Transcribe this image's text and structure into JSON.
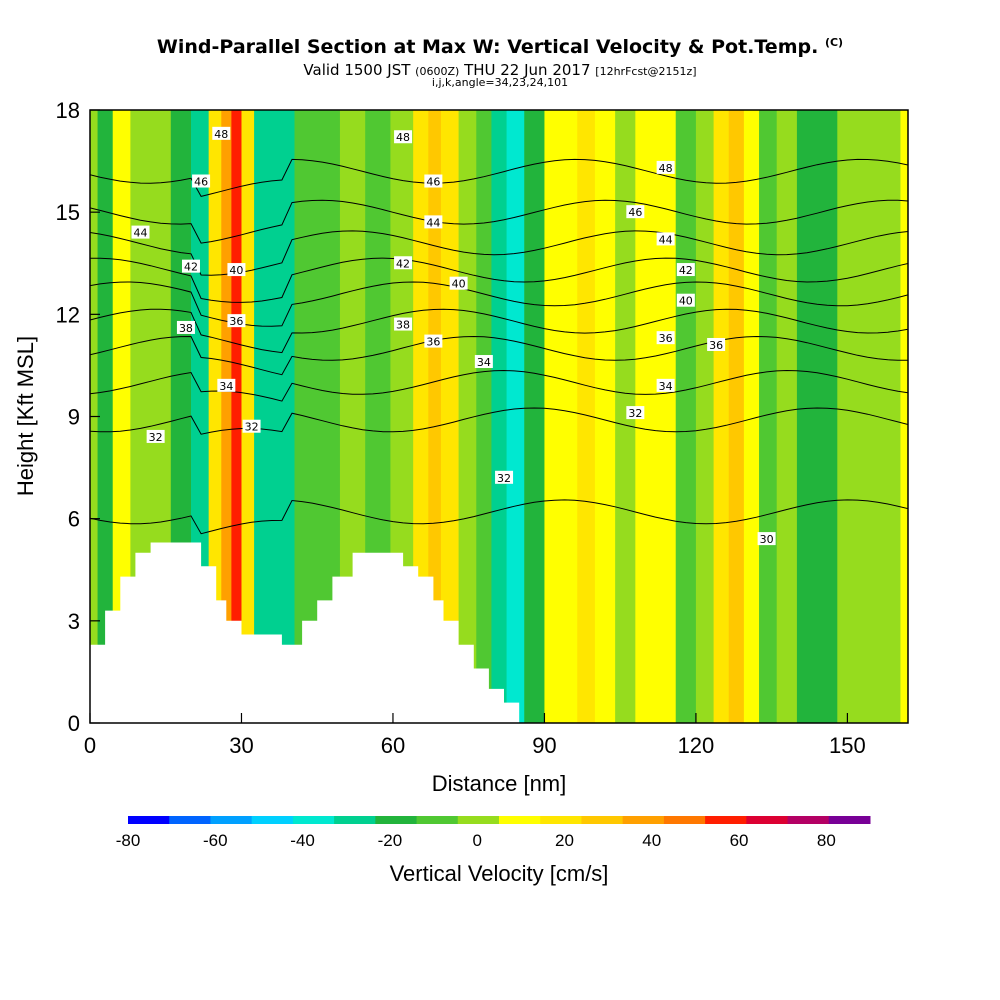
{
  "header": {
    "title": "Wind-Parallel Section at Max W: Vertical Velocity & Pot.Temp.",
    "copyright": "(C)",
    "subtitle_main": "Valid 1500 JST",
    "subtitle_utc": "(0600Z)",
    "subtitle_date": "THU 22 Jun 2017",
    "subtitle_fcst": "[12hrFcst@2151z]",
    "subtitle2": "i,j,k,angle=34,23,24,101"
  },
  "chart_data": {
    "type": "heatmap",
    "title": "Wind-Parallel Section at Max W: Vertical Velocity & Pot.Temp.",
    "xlabel": "Distance [nm]",
    "ylabel": "Height [Kft MSL]",
    "xlim": [
      0,
      162
    ],
    "ylim": [
      0,
      18
    ],
    "x_ticks": [
      0,
      30,
      60,
      90,
      120,
      150
    ],
    "y_ticks": [
      0,
      3,
      6,
      9,
      12,
      15,
      18
    ],
    "colorbar": {
      "label": "Vertical Velocity [cm/s]",
      "tick_values": [
        -80,
        -60,
        -40,
        -20,
        0,
        20,
        40,
        60,
        80
      ],
      "bounds": [
        -80,
        -70,
        -60,
        -50,
        -40,
        -30,
        -20,
        -10,
        0,
        10,
        20,
        30,
        40,
        50,
        60,
        70,
        80,
        90
      ],
      "colors": [
        "#0000ff",
        "#0064ff",
        "#00a0ff",
        "#00d0ff",
        "#00e8d0",
        "#00d090",
        "#22b43c",
        "#50c832",
        "#96dc1e",
        "#ffff00",
        "#ffe600",
        "#ffc800",
        "#ffa000",
        "#ff7800",
        "#ff1e00",
        "#dc0032",
        "#b40064",
        "#780096"
      ]
    },
    "velocity_columns": [
      {
        "x": 0,
        "w": 5
      },
      {
        "x": 3,
        "w": -20
      },
      {
        "x": 6,
        "w": 10
      },
      {
        "x": 10,
        "w": 5
      },
      {
        "x": 14,
        "w": 0
      },
      {
        "x": 18,
        "w": -12
      },
      {
        "x": 22,
        "w": -30
      },
      {
        "x": 25,
        "w": 20
      },
      {
        "x": 27,
        "w": 40
      },
      {
        "x": 29,
        "w": 62
      },
      {
        "x": 31,
        "w": 20
      },
      {
        "x": 34,
        "w": -25
      },
      {
        "x": 38,
        "w": -28
      },
      {
        "x": 43,
        "w": -10
      },
      {
        "x": 47,
        "w": -5
      },
      {
        "x": 52,
        "w": 0
      },
      {
        "x": 57,
        "w": -3
      },
      {
        "x": 62,
        "w": 5
      },
      {
        "x": 66,
        "w": 20
      },
      {
        "x": 68,
        "w": 35
      },
      {
        "x": 71,
        "w": 25
      },
      {
        "x": 75,
        "w": 5
      },
      {
        "x": 78,
        "w": -10
      },
      {
        "x": 81,
        "w": -25
      },
      {
        "x": 84,
        "w": -35
      },
      {
        "x": 88,
        "w": -15
      },
      {
        "x": 92,
        "w": 10
      },
      {
        "x": 95,
        "w": 15
      },
      {
        "x": 98,
        "w": 20
      },
      {
        "x": 102,
        "w": 12
      },
      {
        "x": 106,
        "w": 5
      },
      {
        "x": 110,
        "w": 15
      },
      {
        "x": 114,
        "w": 10
      },
      {
        "x": 118,
        "w": -5
      },
      {
        "x": 122,
        "w": 5
      },
      {
        "x": 125,
        "w": 20
      },
      {
        "x": 128,
        "w": 35
      },
      {
        "x": 131,
        "w": 15
      },
      {
        "x": 134,
        "w": -8
      },
      {
        "x": 138,
        "w": 0
      },
      {
        "x": 142,
        "w": -12
      },
      {
        "x": 146,
        "w": -18
      },
      {
        "x": 150,
        "w": 5
      },
      {
        "x": 155,
        "w": 0
      },
      {
        "x": 159,
        "w": 5
      },
      {
        "x": 162,
        "w": 10
      }
    ],
    "terrain": [
      [
        0,
        2.3
      ],
      [
        3,
        2.3
      ],
      [
        3,
        3.3
      ],
      [
        6,
        3.3
      ],
      [
        6,
        4.3
      ],
      [
        9,
        4.3
      ],
      [
        9,
        5.0
      ],
      [
        12,
        5.0
      ],
      [
        12,
        5.3
      ],
      [
        22,
        5.3
      ],
      [
        22,
        4.6
      ],
      [
        25,
        4.6
      ],
      [
        25,
        3.6
      ],
      [
        27,
        3.6
      ],
      [
        27,
        3.0
      ],
      [
        30,
        3.0
      ],
      [
        30,
        2.6
      ],
      [
        38,
        2.6
      ],
      [
        38,
        2.3
      ],
      [
        42,
        2.3
      ],
      [
        42,
        3.0
      ],
      [
        45,
        3.0
      ],
      [
        45,
        3.6
      ],
      [
        48,
        3.6
      ],
      [
        48,
        4.3
      ],
      [
        52,
        4.3
      ],
      [
        52,
        5.0
      ],
      [
        62,
        5.0
      ],
      [
        62,
        4.6
      ],
      [
        65,
        4.6
      ],
      [
        65,
        4.3
      ],
      [
        68,
        4.3
      ],
      [
        68,
        3.6
      ],
      [
        70,
        3.6
      ],
      [
        70,
        3.0
      ],
      [
        73,
        3.0
      ],
      [
        73,
        2.3
      ],
      [
        76,
        2.3
      ],
      [
        76,
        1.6
      ],
      [
        79,
        1.6
      ],
      [
        79,
        1.0
      ],
      [
        82,
        1.0
      ],
      [
        82,
        0.6
      ],
      [
        85,
        0.6
      ]
    ],
    "theta_contours": {
      "label": "Pot.Temp.",
      "levels": [
        30,
        32,
        34,
        36,
        38,
        40,
        42,
        44,
        46,
        48
      ],
      "level_heights": [
        {
          "level": 30,
          "y": 6.2
        },
        {
          "level": 32,
          "y": 8.9
        },
        {
          "level": 34,
          "y": 10.0
        },
        {
          "level": 36,
          "y": 11.0
        },
        {
          "level": 38,
          "y": 11.8
        },
        {
          "level": 40,
          "y": 12.6
        },
        {
          "level": 42,
          "y": 13.3
        },
        {
          "level": 44,
          "y": 14.1
        },
        {
          "level": 46,
          "y": 15.0
        },
        {
          "level": 48,
          "y": 16.2
        }
      ],
      "labels": [
        {
          "text": "48",
          "x": 26,
          "y": 17.3
        },
        {
          "text": "48",
          "x": 62,
          "y": 17.2
        },
        {
          "text": "48",
          "x": 114,
          "y": 16.3
        },
        {
          "text": "46",
          "x": 22,
          "y": 15.9
        },
        {
          "text": "46",
          "x": 68,
          "y": 15.9
        },
        {
          "text": "46",
          "x": 108,
          "y": 15.0
        },
        {
          "text": "44",
          "x": 10,
          "y": 14.4
        },
        {
          "text": "44",
          "x": 68,
          "y": 14.7
        },
        {
          "text": "44",
          "x": 114,
          "y": 14.2
        },
        {
          "text": "42",
          "x": 20,
          "y": 13.4
        },
        {
          "text": "42",
          "x": 62,
          "y": 13.5
        },
        {
          "text": "42",
          "x": 118,
          "y": 13.3
        },
        {
          "text": "40",
          "x": 29,
          "y": 13.3
        },
        {
          "text": "40",
          "x": 73,
          "y": 12.9
        },
        {
          "text": "40",
          "x": 118,
          "y": 12.4
        },
        {
          "text": "38",
          "x": 19,
          "y": 11.6
        },
        {
          "text": "38",
          "x": 62,
          "y": 11.7
        },
        {
          "text": "36",
          "x": 29,
          "y": 11.8
        },
        {
          "text": "36",
          "x": 68,
          "y": 11.2
        },
        {
          "text": "36",
          "x": 124,
          "y": 11.1
        },
        {
          "text": "36",
          "x": 114,
          "y": 11.3
        },
        {
          "text": "34",
          "x": 27,
          "y": 9.9
        },
        {
          "text": "34",
          "x": 78,
          "y": 10.6
        },
        {
          "text": "34",
          "x": 114,
          "y": 9.9
        },
        {
          "text": "32",
          "x": 13,
          "y": 8.4
        },
        {
          "text": "32",
          "x": 32,
          "y": 8.7
        },
        {
          "text": "32",
          "x": 108,
          "y": 9.1
        },
        {
          "text": "32",
          "x": 82,
          "y": 7.2
        },
        {
          "text": "30",
          "x": 134,
          "y": 5.4
        }
      ]
    }
  }
}
